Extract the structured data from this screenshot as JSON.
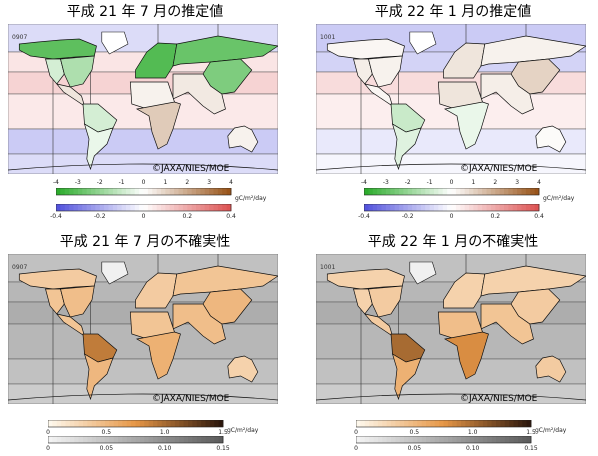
{
  "panels": [
    {
      "title": "平成 21 年 7 月の推定値",
      "code": "0907",
      "copyright": "©JAXA/NIES/MOE",
      "kind": "estimate",
      "regions": [
        {
          "region": "north-america-north",
          "value": -3.0
        },
        {
          "region": "north-america-east",
          "value": -1.5
        },
        {
          "region": "north-america-west",
          "value": -0.8
        },
        {
          "region": "central-america",
          "value": 0.6
        },
        {
          "region": "south-america-north",
          "value": -0.8
        },
        {
          "region": "south-america-south",
          "value": -0.4
        },
        {
          "region": "europe",
          "value": -3.2
        },
        {
          "region": "siberia",
          "value": -2.8
        },
        {
          "region": "asia-east",
          "value": -2.4
        },
        {
          "region": "asia-south",
          "value": 0.5
        },
        {
          "region": "africa-north",
          "value": 0.3
        },
        {
          "region": "africa-south",
          "value": 1.2
        },
        {
          "region": "australia",
          "value": 0.3
        },
        {
          "region": "ocean-n-high",
          "value": -0.08
        },
        {
          "region": "ocean-n-mid",
          "value": 0.06
        },
        {
          "region": "ocean-tropics-n",
          "value": 0.1
        },
        {
          "region": "ocean-tropics-s",
          "value": 0.05
        },
        {
          "region": "ocean-s-mid",
          "value": -0.12
        },
        {
          "region": "ocean-s-high",
          "value": -0.08
        }
      ],
      "colorbar": {
        "land_ticks": [
          "-4",
          "-3",
          "-2",
          "-1",
          "0",
          "1",
          "2",
          "3",
          "4"
        ],
        "ocean_ticks": [
          "-0.4",
          "-0.2",
          "0",
          "0.2",
          "0.4"
        ],
        "unit": "gC/m²/day"
      }
    },
    {
      "title": "平成 22 年 1 月の推定値",
      "code": "1001",
      "copyright": "©JAXA/NIES/MOE",
      "kind": "estimate",
      "regions": [
        {
          "region": "north-america-north",
          "value": 0.2
        },
        {
          "region": "north-america-east",
          "value": 0.3
        },
        {
          "region": "north-america-west",
          "value": 0.4
        },
        {
          "region": "central-america",
          "value": 0.2
        },
        {
          "region": "south-america-north",
          "value": -1.0
        },
        {
          "region": "south-america-south",
          "value": -0.6
        },
        {
          "region": "europe",
          "value": 0.6
        },
        {
          "region": "siberia",
          "value": 0.3
        },
        {
          "region": "asia-east",
          "value": 1.0
        },
        {
          "region": "asia-south",
          "value": 0.4
        },
        {
          "region": "africa-north",
          "value": 0.6
        },
        {
          "region": "africa-south",
          "value": -0.4
        },
        {
          "region": "australia",
          "value": 0.1
        },
        {
          "region": "ocean-n-high",
          "value": -0.12
        },
        {
          "region": "ocean-n-mid",
          "value": -0.1
        },
        {
          "region": "ocean-tropics-n",
          "value": 0.08
        },
        {
          "region": "ocean-tropics-s",
          "value": 0.04
        },
        {
          "region": "ocean-s-mid",
          "value": -0.05
        },
        {
          "region": "ocean-s-high",
          "value": -0.02
        }
      ],
      "colorbar": {
        "land_ticks": [
          "-4",
          "-3",
          "-2",
          "-1",
          "0",
          "1",
          "2",
          "3",
          "4"
        ],
        "ocean_ticks": [
          "-0.4",
          "-0.2",
          "0",
          "0.2",
          "0.4"
        ],
        "unit": "gC/m²/day"
      }
    },
    {
      "title": "平成 21 年 7 月の不確実性",
      "code": "0907",
      "copyright": "©JAXA/NIES/MOE",
      "kind": "uncertainty",
      "regions": [
        {
          "region": "north-america-north",
          "value": 0.35
        },
        {
          "region": "north-america-east",
          "value": 0.45
        },
        {
          "region": "north-america-west",
          "value": 0.4
        },
        {
          "region": "central-america",
          "value": 0.4
        },
        {
          "region": "south-america-north",
          "value": 0.9
        },
        {
          "region": "south-america-south",
          "value": 0.5
        },
        {
          "region": "europe",
          "value": 0.35
        },
        {
          "region": "siberia",
          "value": 0.4
        },
        {
          "region": "asia-east",
          "value": 0.5
        },
        {
          "region": "asia-south",
          "value": 0.45
        },
        {
          "region": "africa-north",
          "value": 0.4
        },
        {
          "region": "africa-south",
          "value": 0.55
        },
        {
          "region": "australia",
          "value": 0.3
        },
        {
          "region": "ocean-n-high",
          "value": 0.05
        },
        {
          "region": "ocean-n-mid",
          "value": 0.06
        },
        {
          "region": "ocean-tropics-n",
          "value": 0.07
        },
        {
          "region": "ocean-tropics-s",
          "value": 0.06
        },
        {
          "region": "ocean-s-mid",
          "value": 0.05
        },
        {
          "region": "ocean-s-high",
          "value": 0.04
        }
      ],
      "colorbar": {
        "land_ticks": [
          "0",
          "0.5",
          "1.0",
          "1.5"
        ],
        "ocean_ticks": [
          "0",
          "0.05",
          "0.10",
          "0.15"
        ],
        "unit": "gC/m²/day"
      }
    },
    {
      "title": "平成 22 年 1 月の不確実性",
      "code": "1001",
      "copyright": "©JAXA/NIES/MOE",
      "kind": "uncertainty",
      "regions": [
        {
          "region": "north-america-north",
          "value": 0.3
        },
        {
          "region": "north-america-east",
          "value": 0.35
        },
        {
          "region": "north-america-west",
          "value": 0.3
        },
        {
          "region": "central-america",
          "value": 0.35
        },
        {
          "region": "south-america-north",
          "value": 1.0
        },
        {
          "region": "south-america-south",
          "value": 0.55
        },
        {
          "region": "europe",
          "value": 0.3
        },
        {
          "region": "siberia",
          "value": 0.3
        },
        {
          "region": "asia-east",
          "value": 0.35
        },
        {
          "region": "asia-south",
          "value": 0.4
        },
        {
          "region": "africa-north",
          "value": 0.45
        },
        {
          "region": "africa-south",
          "value": 0.8
        },
        {
          "region": "australia",
          "value": 0.35
        },
        {
          "region": "ocean-n-high",
          "value": 0.05
        },
        {
          "region": "ocean-n-mid",
          "value": 0.06
        },
        {
          "region": "ocean-tropics-n",
          "value": 0.07
        },
        {
          "region": "ocean-tropics-s",
          "value": 0.06
        },
        {
          "region": "ocean-s-mid",
          "value": 0.05
        },
        {
          "region": "ocean-s-high",
          "value": 0.04
        }
      ],
      "colorbar": {
        "land_ticks": [
          "0",
          "0.5",
          "1.0",
          "1.5"
        ],
        "ocean_ticks": [
          "0",
          "0.05",
          "0.10",
          "0.15"
        ],
        "unit": "gC/m²/day"
      }
    }
  ]
}
